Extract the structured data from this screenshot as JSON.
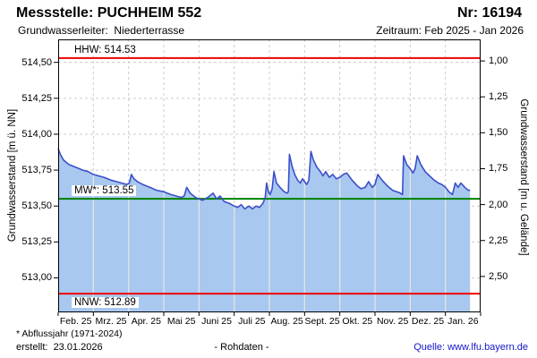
{
  "header": {
    "title": "Messstelle: PUCHHEIM 552",
    "number": "Nr: 16194",
    "aquifer": "Grundwasserleiter:  Niederterrasse",
    "period": "Zeitraum: Feb 2025 - Jan 2026"
  },
  "footer": {
    "footnote": "* Abflussjahr (1971-2024)",
    "created": "erstellt:  23.01.2026",
    "center_label": "- Rohdaten -",
    "source": "Quelle: www.lfu.bayern.de",
    "source_color": "#1414cc"
  },
  "chart_data": {
    "type": "area",
    "ylabel_left": "Grundwasserstand [m ü. NN]",
    "ylabel_right": "Grundwasserstand [m u. Gelände]",
    "x_tick_labels": [
      "Feb. 25",
      "Mrz. 25",
      "Apr. 25",
      "Mai 25",
      "Juni 25",
      "Juli 25",
      "Aug. 25",
      "Sept. 25",
      "Okt. 25",
      "Nov. 25",
      "Dez. 25",
      "Jan. 26"
    ],
    "months_span": 12,
    "ylim_left": [
      512.76,
      514.66
    ],
    "ground_level": 515.51,
    "y_ticks_left": {
      "values": [
        514.5,
        514.25,
        514.0,
        513.75,
        513.5,
        513.25,
        513.0
      ],
      "labels": [
        "514,50",
        "514,25",
        "514,00",
        "513,75",
        "513,50",
        "513,25",
        "513,00"
      ]
    },
    "y_ticks_right": {
      "values": [
        1.0,
        1.25,
        1.5,
        1.75,
        2.0,
        2.25,
        2.5
      ],
      "labels": [
        "1,00",
        "1,25",
        "1,50",
        "1,75",
        "2,00",
        "2,25",
        "2,50"
      ]
    },
    "grid": {
      "color": "#cccccc",
      "dash": "3,3",
      "overlay_color": "#e2e2e2"
    },
    "reference_lines": [
      {
        "name": "HHW",
        "label": "HHW: 514.53",
        "value": 514.53,
        "color": "#ee0000",
        "label_pos": "above"
      },
      {
        "name": "MW",
        "label": "MW*: 513.55",
        "value": 513.55,
        "color": "#008200",
        "label_pos": "above"
      },
      {
        "name": "NNW",
        "label": "NNW: 512.89",
        "value": 512.89,
        "color": "#ee0000",
        "label_pos": "below"
      }
    ],
    "series": [
      {
        "name": "Grundwasserstand (Rohdaten)",
        "color": "#3b4fc8",
        "fill": "#a8c8f0",
        "points": [
          [
            0.0,
            513.9
          ],
          [
            0.06,
            513.86
          ],
          [
            0.15,
            513.82
          ],
          [
            0.3,
            513.79
          ],
          [
            0.5,
            513.77
          ],
          [
            0.7,
            513.75
          ],
          [
            0.85,
            513.74
          ],
          [
            1.0,
            513.72
          ],
          [
            1.15,
            513.71
          ],
          [
            1.3,
            513.7
          ],
          [
            1.5,
            513.68
          ],
          [
            1.65,
            513.67
          ],
          [
            1.8,
            513.66
          ],
          [
            1.95,
            513.65
          ],
          [
            2.02,
            513.66
          ],
          [
            2.08,
            513.72
          ],
          [
            2.15,
            513.69
          ],
          [
            2.25,
            513.67
          ],
          [
            2.4,
            513.65
          ],
          [
            2.6,
            513.63
          ],
          [
            2.8,
            513.61
          ],
          [
            3.0,
            513.6
          ],
          [
            3.2,
            513.58
          ],
          [
            3.35,
            513.57
          ],
          [
            3.5,
            513.56
          ],
          [
            3.58,
            513.57
          ],
          [
            3.65,
            513.63
          ],
          [
            3.75,
            513.59
          ],
          [
            3.9,
            513.56
          ],
          [
            4.0,
            513.55
          ],
          [
            4.1,
            513.54
          ],
          [
            4.25,
            513.56
          ],
          [
            4.4,
            513.59
          ],
          [
            4.5,
            513.55
          ],
          [
            4.6,
            513.57
          ],
          [
            4.72,
            513.53
          ],
          [
            4.85,
            513.52
          ],
          [
            5.0,
            513.5
          ],
          [
            5.1,
            513.49
          ],
          [
            5.2,
            513.51
          ],
          [
            5.3,
            513.48
          ],
          [
            5.42,
            513.5
          ],
          [
            5.52,
            513.48
          ],
          [
            5.62,
            513.5
          ],
          [
            5.72,
            513.49
          ],
          [
            5.82,
            513.52
          ],
          [
            5.88,
            513.56
          ],
          [
            5.92,
            513.66
          ],
          [
            5.97,
            513.6
          ],
          [
            6.02,
            513.58
          ],
          [
            6.08,
            513.62
          ],
          [
            6.13,
            513.74
          ],
          [
            6.2,
            513.66
          ],
          [
            6.3,
            513.63
          ],
          [
            6.42,
            513.6
          ],
          [
            6.5,
            513.59
          ],
          [
            6.54,
            513.6
          ],
          [
            6.57,
            513.86
          ],
          [
            6.64,
            513.78
          ],
          [
            6.72,
            513.72
          ],
          [
            6.8,
            513.68
          ],
          [
            6.88,
            513.66
          ],
          [
            6.94,
            513.69
          ],
          [
            7.0,
            513.67
          ],
          [
            7.06,
            513.65
          ],
          [
            7.12,
            513.68
          ],
          [
            7.18,
            513.88
          ],
          [
            7.25,
            513.82
          ],
          [
            7.35,
            513.77
          ],
          [
            7.45,
            513.74
          ],
          [
            7.52,
            513.71
          ],
          [
            7.6,
            513.74
          ],
          [
            7.7,
            513.7
          ],
          [
            7.8,
            513.72
          ],
          [
            7.9,
            513.69
          ],
          [
            8.0,
            513.7
          ],
          [
            8.1,
            513.72
          ],
          [
            8.2,
            513.73
          ],
          [
            8.35,
            513.68
          ],
          [
            8.5,
            513.64
          ],
          [
            8.6,
            513.62
          ],
          [
            8.72,
            513.63
          ],
          [
            8.82,
            513.67
          ],
          [
            8.92,
            513.63
          ],
          [
            9.0,
            513.65
          ],
          [
            9.08,
            513.72
          ],
          [
            9.2,
            513.68
          ],
          [
            9.35,
            513.64
          ],
          [
            9.5,
            513.61
          ],
          [
            9.62,
            513.6
          ],
          [
            9.72,
            513.59
          ],
          [
            9.78,
            513.58
          ],
          [
            9.81,
            513.85
          ],
          [
            9.9,
            513.79
          ],
          [
            10.0,
            513.76
          ],
          [
            10.08,
            513.73
          ],
          [
            10.14,
            513.76
          ],
          [
            10.2,
            513.85
          ],
          [
            10.3,
            513.79
          ],
          [
            10.42,
            513.74
          ],
          [
            10.55,
            513.71
          ],
          [
            10.68,
            513.68
          ],
          [
            10.8,
            513.66
          ],
          [
            10.9,
            513.65
          ],
          [
            11.0,
            513.63
          ],
          [
            11.1,
            513.6
          ],
          [
            11.2,
            513.58
          ],
          [
            11.28,
            513.66
          ],
          [
            11.36,
            513.63
          ],
          [
            11.44,
            513.66
          ],
          [
            11.55,
            513.63
          ],
          [
            11.65,
            513.61
          ],
          [
            11.7,
            513.61
          ]
        ]
      }
    ]
  }
}
